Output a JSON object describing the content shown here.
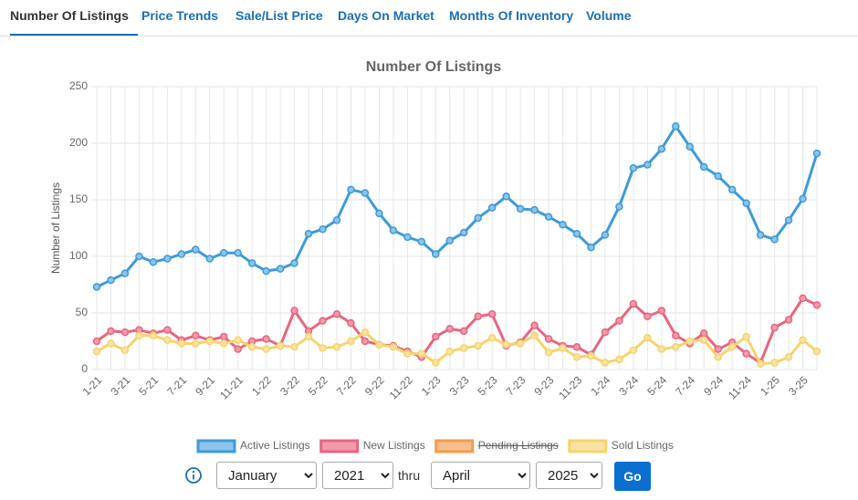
{
  "tabs": [
    "Number Of Listings",
    "Price Trends",
    "Sale/List Price",
    "Days On Market",
    "Months Of Inventory",
    "Volume"
  ],
  "active_tab": 0,
  "chart_data": {
    "type": "line",
    "title": "Number Of Listings",
    "y_label": "Number of Listings",
    "categories": [
      "1-21",
      null,
      "3-21",
      null,
      "5-21",
      null,
      "7-21",
      null,
      "9-21",
      null,
      "11-21",
      null,
      "1-22",
      null,
      "3-22",
      null,
      "5-22",
      null,
      "7-22",
      null,
      "9-22",
      null,
      "11-22",
      null,
      "1-23",
      null,
      "3-23",
      null,
      "5-23",
      null,
      "7-23",
      null,
      "9-23",
      null,
      "11-23",
      null,
      "1-24",
      null,
      "3-24",
      null,
      "5-24",
      null,
      "7-24",
      null,
      "9-24",
      null,
      "11-24",
      null,
      "1-25",
      null,
      "3-25",
      null
    ],
    "series": [
      {
        "name": "Active Listings",
        "color": "#3d9bd8",
        "fill": "#8cc4ec",
        "values": [
          73,
          79,
          85,
          100,
          95,
          98,
          102,
          106,
          98,
          103,
          103,
          94,
          87,
          89,
          94,
          120,
          124,
          132,
          159,
          156,
          138,
          123,
          117,
          113,
          102,
          114,
          121,
          134,
          143,
          153,
          142,
          141,
          135,
          128,
          120,
          108,
          119,
          144,
          178,
          181,
          195,
          215,
          197,
          179,
          171,
          159,
          147,
          119,
          115,
          132,
          151,
          191
        ]
      },
      {
        "name": "New Listings",
        "color": "#e8657f",
        "fill": "#f19aab",
        "values": [
          25,
          34,
          33,
          35,
          32,
          35,
          26,
          30,
          26,
          29,
          18,
          25,
          27,
          21,
          52,
          34,
          43,
          49,
          41,
          25,
          22,
          21,
          16,
          11,
          29,
          36,
          34,
          47,
          49,
          21,
          24,
          39,
          27,
          21,
          20,
          13,
          33,
          43,
          58,
          47,
          52,
          30,
          23,
          32,
          18,
          24,
          14,
          6,
          37,
          44,
          63,
          57
        ]
      },
      {
        "name": "Pending Listings",
        "color": "#f59a4c",
        "fill": "#f8bf8e",
        "hidden": true
      },
      {
        "name": "Sold Listings",
        "color": "#f6d36b",
        "fill": "#f9e3a3",
        "values": [
          16,
          23,
          17,
          30,
          30,
          26,
          23,
          23,
          25,
          23,
          26,
          20,
          18,
          21,
          20,
          29,
          19,
          20,
          25,
          33,
          22,
          20,
          14,
          14,
          6,
          16,
          19,
          21,
          28,
          22,
          23,
          30,
          15,
          19,
          11,
          12,
          6,
          9,
          17,
          28,
          18,
          20,
          25,
          26,
          11,
          20,
          29,
          5,
          6,
          11,
          26,
          16
        ]
      }
    ],
    "ylim": [
      0,
      250
    ],
    "yticks": [
      0,
      50,
      100,
      150,
      200,
      250
    ],
    "grid": true
  },
  "controls": {
    "start_month": "January",
    "start_year": "2021",
    "thru": "thru",
    "end_month": "April",
    "end_year": "2025",
    "button": "Go"
  }
}
